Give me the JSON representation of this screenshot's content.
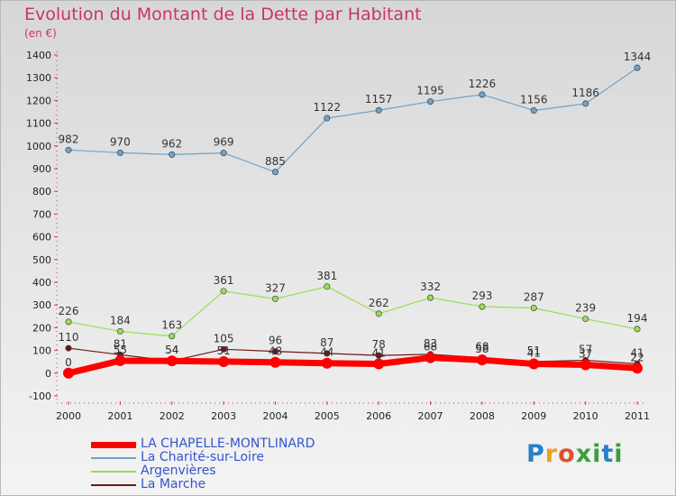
{
  "chart_data": {
    "type": "line",
    "title": "Evolution du Montant de la Dette par Habitant",
    "unit": "(en €)",
    "x": [
      "2000",
      "2001",
      "2002",
      "2003",
      "2004",
      "2005",
      "2006",
      "2007",
      "2008",
      "2009",
      "2010",
      "2011"
    ],
    "y_ticks": [
      -100,
      0,
      100,
      200,
      300,
      400,
      500,
      600,
      700,
      800,
      900,
      1000,
      1100,
      1200,
      1300,
      1400
    ],
    "ylim": [
      -100,
      1400
    ],
    "grid": false,
    "legend_position": "bottom-left",
    "series": [
      {
        "name": "La Marche",
        "color": "#6b1a1a",
        "stroke_width": 1.2,
        "marker_r": 3.2,
        "values": [
          110,
          81,
          54,
          105,
          96,
          87,
          78,
          83,
          68,
          51,
          57,
          41
        ],
        "labels": [
          "110",
          "81",
          "54",
          "105",
          "96",
          "87",
          "78",
          "83",
          "68",
          "51",
          "57",
          "41"
        ]
      },
      {
        "name": "Argenvières",
        "color": "#99dd55",
        "stroke_width": 1.2,
        "marker_r": 3.2,
        "values": [
          226,
          184,
          163,
          361,
          327,
          381,
          262,
          332,
          293,
          287,
          239,
          194
        ],
        "labels": [
          "226",
          "184",
          "163",
          "361",
          "327",
          "381",
          "262",
          "332",
          "293",
          "287",
          "239",
          "194"
        ]
      },
      {
        "name": "La Charité-sur-Loire",
        "color": "#6fa3cc",
        "stroke_width": 1.2,
        "marker_r": 3.2,
        "values": [
          982,
          970,
          962,
          969,
          885,
          1122,
          1157,
          1195,
          1226,
          1156,
          1186,
          1344
        ],
        "labels": [
          "982",
          "970",
          "962",
          "969",
          "885",
          "1122",
          "1157",
          "1195",
          "1226",
          "1156",
          "1186",
          "1344"
        ]
      },
      {
        "name": "LA CHAPELLE-MONTLINARD",
        "color": "#ff0000",
        "stroke_width": 7,
        "marker_r": 6,
        "values": [
          0,
          55,
          54,
          51,
          48,
          44,
          41,
          68,
          58,
          41,
          37,
          22
        ],
        "labels": [
          "0",
          "55",
          "54",
          "51",
          "48",
          "44",
          "41",
          "68",
          "58",
          "41",
          "37",
          "22"
        ]
      }
    ],
    "legend": [
      {
        "name": "LA CHAPELLE-MONTLINARD",
        "color": "#ff0000",
        "thickness": 7
      },
      {
        "name": "La Charité-sur-Loire",
        "color": "#6fa3cc",
        "thickness": 2
      },
      {
        "name": "Argenvières",
        "color": "#99dd55",
        "thickness": 2
      },
      {
        "name": "La Marche",
        "color": "#6b1a1a",
        "thickness": 2
      }
    ]
  },
  "logo": {
    "text": "Proxiti",
    "parts": [
      "P",
      "r",
      "o",
      "x",
      "i",
      "t",
      "i"
    ]
  }
}
